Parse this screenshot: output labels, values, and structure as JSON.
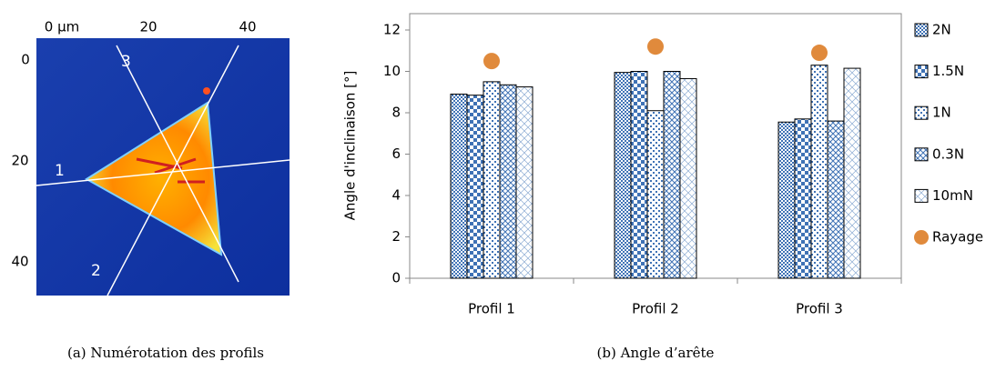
{
  "figure_a": {
    "top_ticks": [
      "0 µm",
      "20",
      "40"
    ],
    "left_ticks": [
      "0",
      "20",
      "40"
    ],
    "profile_labels": [
      "1",
      "2",
      "3"
    ]
  },
  "captions": [
    "(a)  Numérotation des profils",
    "(b)  Angle d’arête"
  ],
  "chart_data": {
    "type": "bar",
    "y_label": "Angle d'inclinaison [°]",
    "categories": [
      "Profil 1",
      "Profil 2",
      "Profil 3"
    ],
    "series": [
      {
        "name": "2N",
        "color": "#3f72b5",
        "values": [
          8.9,
          9.95,
          7.55
        ]
      },
      {
        "name": "1.5N",
        "color": "#3f72b5",
        "values": [
          8.85,
          10.0,
          7.7
        ]
      },
      {
        "name": "1N",
        "color": "#3f72b5",
        "values": [
          9.5,
          8.1,
          10.3
        ]
      },
      {
        "name": "0.3N",
        "color": "#3f72b5",
        "values": [
          9.35,
          10.0,
          7.6
        ]
      },
      {
        "name": "10mN",
        "color": "#3f72b5",
        "values": [
          9.25,
          9.65,
          10.15
        ]
      },
      {
        "name": "Rayage",
        "color": "#e08a3c",
        "type": "scatter",
        "values": [
          10.5,
          11.2,
          10.9
        ]
      }
    ],
    "ylim": [
      0,
      12
    ],
    "yticks": [
      0,
      2,
      4,
      6,
      8,
      10,
      12
    ],
    "legend": "right"
  }
}
